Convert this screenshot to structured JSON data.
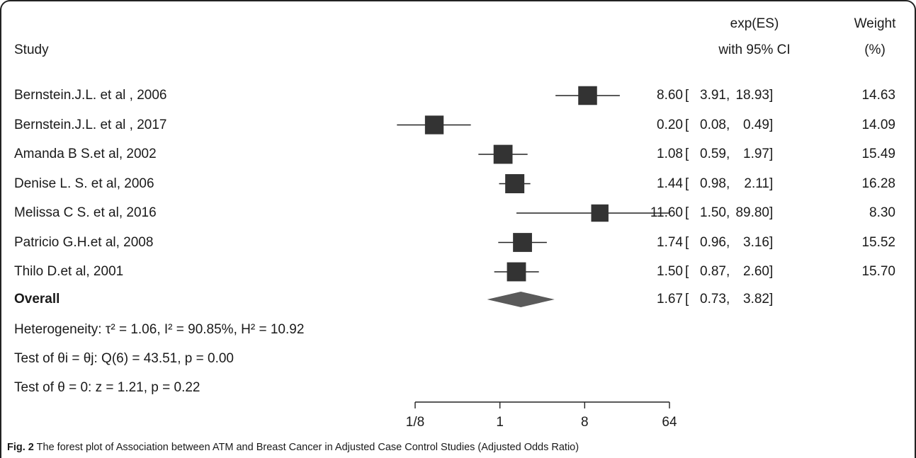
{
  "chart_data": {
    "type": "forest",
    "headers": {
      "study": "Study",
      "es_line1": "exp(ES)",
      "es_line2": "with 95% CI",
      "weight_line1": "Weight",
      "weight_line2": "(%)"
    },
    "studies": [
      {
        "name": "Bernstein.J.L. et al , 2006",
        "es": 8.6,
        "lo": 3.91,
        "hi": 18.93,
        "es_text": "8.60",
        "lo_text": "3.91",
        "hi_text": "18.93",
        "weight": "14.63"
      },
      {
        "name": "Bernstein.J.L. et al , 2017",
        "es": 0.2,
        "lo": 0.08,
        "hi": 0.49,
        "es_text": "0.20",
        "lo_text": "0.08",
        "hi_text": "0.49",
        "weight": "14.09"
      },
      {
        "name": "Amanda B S.et al, 2002",
        "es": 1.08,
        "lo": 0.59,
        "hi": 1.97,
        "es_text": "1.08",
        "lo_text": "0.59",
        "hi_text": "1.97",
        "weight": "15.49"
      },
      {
        "name": "Denise L. S. et al, 2006",
        "es": 1.44,
        "lo": 0.98,
        "hi": 2.11,
        "es_text": "1.44",
        "lo_text": "0.98",
        "hi_text": "2.11",
        "weight": "16.28"
      },
      {
        "name": "Melissa C S. et al, 2016",
        "es": 11.6,
        "lo": 1.5,
        "hi": 89.8,
        "es_text": "11.60",
        "lo_text": "1.50",
        "hi_text": "89.80",
        "weight": "8.30"
      },
      {
        "name": "Patricio G.H.et al, 2008",
        "es": 1.74,
        "lo": 0.96,
        "hi": 3.16,
        "es_text": "1.74",
        "lo_text": "0.96",
        "hi_text": "3.16",
        "weight": "15.52"
      },
      {
        "name": "Thilo D.et al, 2001",
        "es": 1.5,
        "lo": 0.87,
        "hi": 2.6,
        "es_text": "1.50",
        "lo_text": "0.87",
        "hi_text": "2.60",
        "weight": "15.70"
      }
    ],
    "overall": {
      "label": "Overall",
      "es": 1.67,
      "lo": 0.73,
      "hi": 3.82,
      "es_text": "1.67",
      "lo_text": "0.73",
      "hi_text": "3.82"
    },
    "notes": {
      "heterogeneity": "Heterogeneity: τ² = 1.06, I² = 90.85%, H² = 10.92",
      "test_theta_i": "Test of θi = θj: Q(6) = 43.51, p = 0.00",
      "test_theta_0": "Test of θ = 0: z = 1.21, p = 0.22"
    },
    "x_axis": {
      "scale": "log",
      "ticks": [
        0.125,
        1,
        8,
        64
      ],
      "tick_labels": [
        "1/8",
        "1",
        "8",
        "64"
      ]
    },
    "colors": {
      "marker": "#333333",
      "diamond": "#5a5a5a",
      "line": "#222222"
    }
  },
  "caption": {
    "label": "Fig. 2",
    "text": "The forest plot of Association between ATM and Breast Cancer in Adjusted Case Control Studies (Adjusted Odds Ratio)"
  }
}
